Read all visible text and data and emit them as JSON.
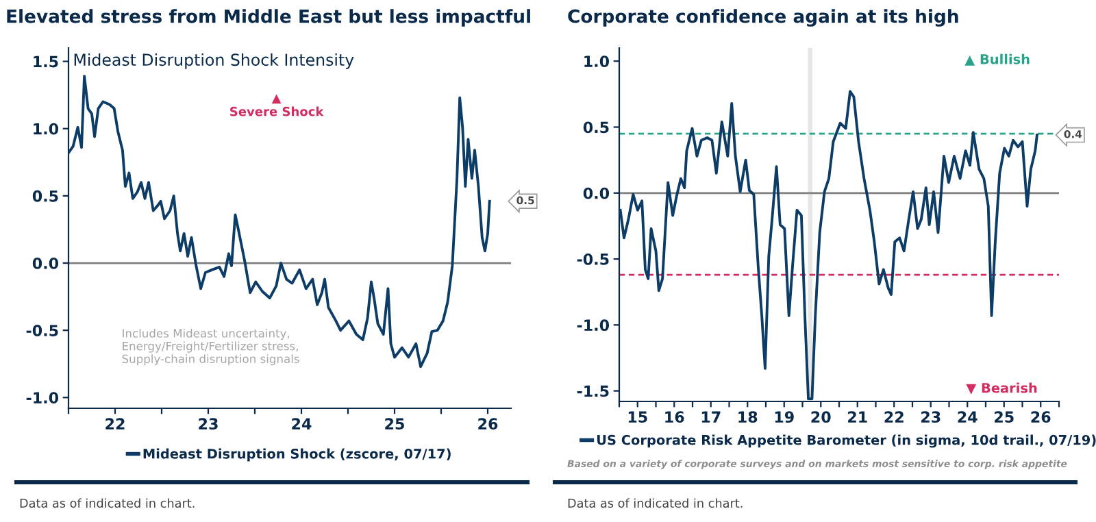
{
  "chart_data": [
    {
      "type": "line",
      "title": "Elevated stress from Middle East but less impactful",
      "subtitle": "Mideast Disruption Shock Intensity",
      "series": [
        {
          "name": "Mideast Disruption Shock (zscore, 07/17)",
          "color": "#0d3d66",
          "x": [
            21.5,
            21.55,
            21.6,
            21.64,
            21.67,
            21.71,
            21.75,
            21.78,
            21.82,
            21.87,
            21.94,
            21.99,
            22.03,
            22.08,
            22.11,
            22.15,
            22.19,
            22.24,
            22.28,
            22.32,
            22.36,
            22.41,
            22.46,
            22.49,
            22.53,
            22.59,
            22.63,
            22.67,
            22.7,
            22.74,
            22.78,
            22.82,
            22.87,
            22.92,
            22.97,
            23.04,
            23.12,
            23.17,
            23.22,
            23.25,
            23.29,
            23.32,
            23.39,
            23.45,
            23.51,
            23.58,
            23.66,
            23.73,
            23.78,
            23.84,
            23.9,
            23.98,
            24.05,
            24.12,
            24.17,
            24.22,
            24.25,
            24.29,
            24.37,
            24.42,
            24.51,
            24.59,
            24.66,
            24.71,
            24.75,
            24.78,
            24.82,
            24.88,
            24.93,
            24.96,
            25.0,
            25.08,
            25.15,
            25.23,
            25.28,
            25.35,
            25.4,
            25.46,
            25.52,
            25.57,
            25.62,
            25.67,
            25.7,
            25.73,
            25.76,
            25.79,
            25.83,
            25.86,
            25.9,
            25.94,
            25.97,
            26.0,
            26.02
          ],
          "values": [
            0.82,
            0.87,
            1.01,
            0.86,
            1.39,
            1.15,
            1.11,
            0.94,
            1.15,
            1.2,
            1.18,
            1.15,
            0.98,
            0.84,
            0.57,
            0.67,
            0.48,
            0.53,
            0.6,
            0.48,
            0.6,
            0.39,
            0.43,
            0.46,
            0.33,
            0.39,
            0.5,
            0.22,
            0.09,
            0.22,
            0.05,
            0.19,
            -0.02,
            -0.19,
            -0.07,
            -0.05,
            -0.03,
            -0.1,
            0.07,
            -0.02,
            0.36,
            0.26,
            0.02,
            -0.22,
            -0.14,
            -0.21,
            -0.26,
            -0.17,
            0.0,
            -0.12,
            -0.15,
            -0.05,
            -0.19,
            -0.12,
            -0.31,
            -0.22,
            -0.12,
            -0.33,
            -0.43,
            -0.5,
            -0.43,
            -0.53,
            -0.57,
            -0.41,
            -0.14,
            -0.26,
            -0.45,
            -0.53,
            -0.19,
            -0.6,
            -0.7,
            -0.63,
            -0.7,
            -0.6,
            -0.77,
            -0.67,
            -0.51,
            -0.5,
            -0.43,
            -0.29,
            -0.02,
            0.63,
            1.23,
            1.01,
            0.57,
            0.92,
            0.63,
            0.84,
            0.57,
            0.19,
            0.09,
            0.22,
            0.46
          ]
        }
      ],
      "xlim": [
        21.5,
        26.25
      ],
      "xticks": [
        {
          "value": 21.5,
          "label": null
        },
        22,
        {
          "value": 22.5,
          "label": null
        },
        23,
        {
          "value": 23.5,
          "label": null
        },
        24,
        {
          "value": 24.5,
          "label": null
        },
        25,
        {
          "value": 25.5,
          "label": null
        },
        26
      ],
      "ylim": [
        -1.08,
        1.6
      ],
      "yticks": [
        {
          "value": -1.0,
          "label": "-1.0"
        },
        {
          "value": -0.5,
          "label": "-0.5"
        },
        {
          "value": 0.0,
          "label": "0.0"
        },
        {
          "value": 0.5,
          "label": "0.5"
        },
        {
          "value": 1.0,
          "label": "1.0"
        },
        {
          "value": 1.5,
          "label": "1.5"
        }
      ],
      "ref_lines": [
        {
          "axis": "y",
          "value": 0,
          "color": "#7f7f7f",
          "line_style": "solid"
        }
      ],
      "annotations": [
        "▲\nSevere Shock",
        "Includes Mideast uncertainty,\nEnergy/Freight/Fertilizer stress,\nSupply-chain disruption signals",
        {
          "text": "0.5",
          "x": 26.02,
          "y": 0.46
        },
        "Data as of indicated in chart."
      ],
      "legend": "bottom",
      "grid": false,
      "marker": "none",
      "line_style": "solid"
    },
    {
      "type": "line",
      "title": "Corporate confidence again at its high",
      "series": [
        {
          "name": "US Corporate Risk Appetite Barometer (in sigma, 10d trail., 07/19)",
          "color": "#0d3d66",
          "x": [
            14.53,
            14.63,
            14.75,
            14.88,
            15.0,
            15.12,
            15.21,
            15.29,
            15.37,
            15.5,
            15.58,
            15.68,
            15.83,
            15.96,
            16.06,
            16.18,
            16.28,
            16.34,
            16.49,
            16.62,
            16.74,
            16.9,
            17.03,
            17.15,
            17.3,
            17.46,
            17.57,
            17.67,
            17.8,
            17.95,
            18.05,
            18.17,
            18.29,
            18.39,
            18.48,
            18.58,
            18.67,
            18.79,
            18.89,
            19.01,
            19.13,
            19.23,
            19.35,
            19.47,
            19.57,
            19.66,
            19.76,
            19.85,
            19.97,
            20.1,
            20.22,
            20.34,
            20.53,
            20.68,
            20.8,
            20.9,
            21.03,
            21.18,
            21.34,
            21.46,
            21.59,
            21.71,
            21.84,
            21.92,
            22.02,
            22.15,
            22.27,
            22.4,
            22.52,
            22.64,
            22.74,
            22.87,
            22.96,
            23.08,
            23.2,
            23.36,
            23.49,
            23.64,
            23.8,
            23.95,
            24.07,
            24.16,
            24.32,
            24.45,
            24.57,
            24.66,
            24.76,
            24.88,
            25.01,
            25.13,
            25.25,
            25.38,
            25.5,
            25.63,
            25.73,
            25.85,
            25.9
          ],
          "values": [
            -0.13,
            -0.34,
            -0.2,
            -0.01,
            -0.13,
            -0.06,
            -0.58,
            -0.65,
            -0.27,
            -0.44,
            -0.74,
            -0.65,
            0.08,
            -0.17,
            -0.03,
            0.11,
            0.04,
            0.32,
            0.49,
            0.28,
            0.4,
            0.42,
            0.4,
            0.15,
            0.54,
            0.28,
            0.68,
            0.28,
            0.01,
            0.25,
            0.02,
            -0.01,
            -0.55,
            -0.93,
            -1.33,
            -0.48,
            -0.2,
            0.2,
            -0.24,
            -0.27,
            -0.93,
            -0.55,
            -0.13,
            -0.17,
            -0.96,
            -1.56,
            -1.56,
            -0.93,
            -0.3,
            0.01,
            0.11,
            0.39,
            0.53,
            0.49,
            0.77,
            0.73,
            0.39,
            0.11,
            -0.13,
            -0.37,
            -0.69,
            -0.58,
            -0.72,
            -0.77,
            -0.37,
            -0.34,
            -0.44,
            -0.2,
            0.01,
            -0.27,
            -0.2,
            0.04,
            -0.24,
            0.01,
            -0.3,
            0.28,
            0.08,
            0.28,
            0.11,
            0.32,
            0.21,
            0.46,
            0.18,
            0.11,
            -0.1,
            -0.93,
            -0.37,
            0.15,
            0.34,
            0.28,
            0.4,
            0.35,
            0.39,
            -0.1,
            0.18,
            0.32,
            0.44
          ]
        }
      ],
      "xlim": [
        14.5,
        26.5
      ],
      "xticks": [
        {
          "value": 14.5,
          "label": null
        },
        15,
        {
          "value": 15.5,
          "label": null
        },
        16,
        {
          "value": 16.5,
          "label": null
        },
        17,
        {
          "value": 17.5,
          "label": null
        },
        18,
        {
          "value": 18.5,
          "label": null
        },
        19,
        {
          "value": 19.5,
          "label": null
        },
        20,
        {
          "value": 20.5,
          "label": null
        },
        21,
        {
          "value": 21.5,
          "label": null
        },
        22,
        {
          "value": 22.5,
          "label": null
        },
        23,
        {
          "value": 23.5,
          "label": null
        },
        24,
        {
          "value": 24.5,
          "label": null
        },
        25,
        {
          "value": 25.5,
          "label": null
        },
        26,
        {
          "value": 26.5,
          "label": null
        }
      ],
      "ylim": [
        -1.58,
        1.1
      ],
      "yticks": [
        {
          "value": -1.5,
          "label": "-1.5"
        },
        {
          "value": -1.0,
          "label": "-1.0"
        },
        {
          "value": -0.5,
          "label": "-0.5"
        },
        {
          "value": 0.0,
          "label": "0.0"
        },
        {
          "value": 0.5,
          "label": "0.5"
        },
        {
          "value": 1.0,
          "label": "1.0"
        }
      ],
      "ref_lines": [
        {
          "axis": "y",
          "value": 0,
          "color": "#7f7f7f",
          "line_style": "solid"
        },
        {
          "axis": "y",
          "value": 0.45,
          "color": "#2aa189",
          "line_style": "dashed"
        },
        {
          "axis": "y",
          "value": -0.62,
          "color": "#d12d5f",
          "line_style": "dashed"
        }
      ],
      "bands": [
        {
          "axis": "x",
          "from": 19.65,
          "to": 19.77,
          "color": "#e6e6e6"
        }
      ],
      "annotations": [
        "▲ Bullish",
        "▼ Bearish",
        "Based on a variety of corporate surveys and on markets most sensitive to corp. risk appetite",
        {
          "text": "0.4",
          "x": 25.9,
          "y": 0.44
        },
        "Data as of indicated in chart."
      ],
      "legend": "bottom",
      "grid": false,
      "marker": "none",
      "line_style": "solid"
    }
  ]
}
